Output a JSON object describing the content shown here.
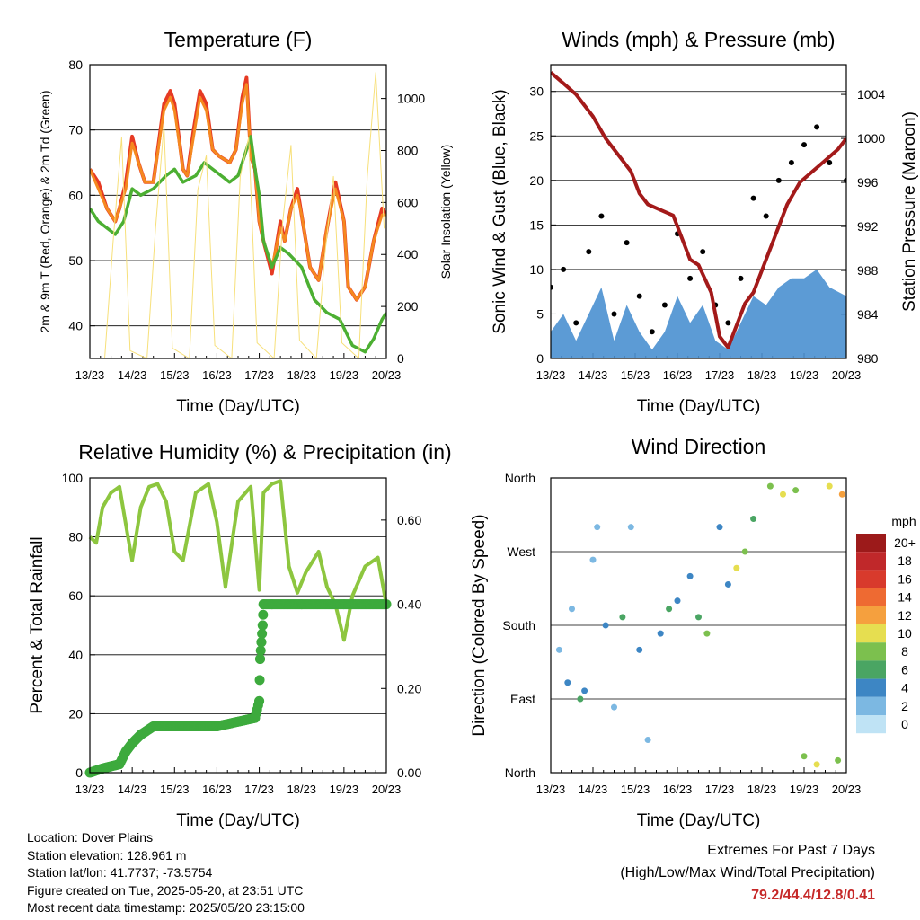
{
  "chart_data": [
    {
      "type": "line",
      "title": "Temperature (F)",
      "xlabel": "Time (Day/UTC)",
      "ylabel": "2m & 9m T (Red, Orange) & 2m Td (Green)",
      "ylabel_right": "Solar Insolation (Yellow)",
      "xticks": [
        "13/23",
        "14/23",
        "15/23",
        "16/23",
        "17/23",
        "18/23",
        "19/23",
        "20/23"
      ],
      "ylim": [
        35,
        80
      ],
      "yticks": [
        40,
        50,
        60,
        70,
        80
      ],
      "ylim_right": [
        0,
        1130
      ],
      "yticks_right": [
        0,
        200,
        400,
        600,
        800,
        1000
      ],
      "grid": true,
      "series": [
        {
          "name": "2m T",
          "color": "#e63a23",
          "x": [
            0,
            0.2,
            0.4,
            0.5,
            0.6,
            0.7,
            0.85,
            1,
            1.15,
            1.3,
            1.5,
            1.75,
            1.9,
            2,
            2.2,
            2.3,
            2.45,
            2.6,
            2.75,
            2.9,
            3.05,
            3.3,
            3.45,
            3.6,
            3.7,
            3.8,
            3.9,
            4,
            4.1,
            4.3,
            4.4,
            4.5,
            4.6,
            4.75,
            4.9,
            5.0,
            5.2,
            5.4,
            5.6,
            5.8,
            6.0,
            6.1,
            6.3,
            6.5,
            6.7,
            6.9,
            7.0
          ],
          "y": [
            64,
            62,
            58,
            57,
            56,
            58,
            62,
            69,
            65,
            62,
            62,
            74,
            76,
            74,
            64,
            63,
            70,
            76,
            74,
            67,
            66,
            65,
            67,
            75,
            78,
            66,
            64,
            56,
            53,
            48,
            52,
            56,
            53,
            58,
            61,
            57,
            49,
            47,
            55,
            62,
            56,
            46,
            44,
            46,
            53,
            58,
            57
          ]
        },
        {
          "name": "9m T",
          "color": "#f5891f",
          "x": [
            0,
            0.2,
            0.4,
            0.5,
            0.6,
            0.7,
            0.85,
            1,
            1.15,
            1.3,
            1.5,
            1.75,
            1.9,
            2,
            2.2,
            2.3,
            2.45,
            2.6,
            2.75,
            2.9,
            3.05,
            3.3,
            3.45,
            3.6,
            3.7,
            3.8,
            3.9,
            4,
            4.1,
            4.3,
            4.4,
            4.5,
            4.6,
            4.75,
            4.9,
            5.0,
            5.2,
            5.4,
            5.6,
            5.8,
            6.0,
            6.1,
            6.3,
            6.5,
            6.7,
            6.9,
            7.0
          ],
          "y": [
            64,
            61,
            58,
            57,
            56,
            58,
            61,
            68,
            65,
            62,
            62,
            73,
            75,
            73,
            64,
            63,
            69,
            75,
            73,
            67,
            66,
            65,
            67,
            74,
            77,
            66,
            64,
            56,
            53,
            49,
            52,
            55,
            53,
            58,
            60,
            57,
            49,
            47,
            55,
            61,
            56,
            46,
            44,
            46,
            53,
            57,
            57
          ]
        },
        {
          "name": "2m Td",
          "color": "#4caf32",
          "x": [
            0,
            0.2,
            0.4,
            0.6,
            0.8,
            1.0,
            1.2,
            1.5,
            1.8,
            2.0,
            2.2,
            2.5,
            2.7,
            2.9,
            3.1,
            3.3,
            3.5,
            3.7,
            3.8,
            3.9,
            4.0,
            4.1,
            4.3,
            4.5,
            4.7,
            5.0,
            5.3,
            5.6,
            5.9,
            6.2,
            6.5,
            6.7,
            6.9,
            7.0
          ],
          "y": [
            58,
            56,
            55,
            54,
            56,
            61,
            60,
            61,
            63,
            64,
            62,
            63,
            65,
            64,
            63,
            62,
            63,
            67,
            69,
            64,
            60,
            53,
            49,
            52,
            51,
            49,
            44,
            42,
            41,
            37,
            36,
            38,
            41,
            42
          ]
        },
        {
          "name": "Solar Insolation",
          "color": "#f7e07a",
          "axis": "right",
          "x": [
            0.35,
            0.55,
            0.75,
            0.95,
            1.35,
            1.55,
            1.75,
            1.95,
            2.35,
            2.55,
            2.75,
            2.95,
            3.35,
            3.55,
            3.75,
            3.95,
            4.35,
            4.55,
            4.75,
            4.95,
            5.35,
            5.55,
            5.75,
            5.95,
            6.35,
            6.55,
            6.75,
            6.95
          ],
          "y": [
            0,
            450,
            850,
            30,
            0,
            500,
            900,
            40,
            0,
            650,
            780,
            50,
            0,
            700,
            850,
            60,
            0,
            520,
            820,
            70,
            0,
            400,
            700,
            60,
            0,
            700,
            1100,
            500
          ]
        }
      ]
    },
    {
      "type": "line",
      "title": "Winds (mph) & Pressure (mb)",
      "xlabel": "Time (Day/UTC)",
      "ylabel": "Sonic Wind & Gust (Blue, Black)",
      "ylabel_right": "Station Pressure (Maroon)",
      "xticks": [
        "13/23",
        "14/23",
        "15/23",
        "16/23",
        "17/23",
        "18/23",
        "19/23",
        "20/23"
      ],
      "ylim": [
        0,
        33
      ],
      "yticks": [
        0,
        5,
        10,
        15,
        20,
        25,
        30
      ],
      "ylim_right": [
        980,
        1006.7
      ],
      "yticks_right": [
        980,
        984,
        988,
        992,
        996,
        1000,
        1004
      ],
      "grid": true,
      "series": [
        {
          "name": "Sonic Wind",
          "color": "#4a90d0",
          "x": [
            0,
            0.3,
            0.6,
            0.9,
            1.2,
            1.5,
            1.8,
            2.1,
            2.4,
            2.7,
            3.0,
            3.3,
            3.6,
            3.9,
            4.2,
            4.5,
            4.8,
            5.1,
            5.4,
            5.7,
            6.0,
            6.3,
            6.6,
            7.0
          ],
          "y": [
            3,
            5,
            2,
            5,
            8,
            2,
            6,
            3,
            1,
            3,
            7,
            4,
            6,
            2,
            1,
            4,
            7,
            6,
            8,
            9,
            9,
            10,
            8,
            7
          ]
        },
        {
          "name": "Gust",
          "color": "#000000",
          "x": [
            0,
            0.3,
            0.6,
            0.9,
            1.2,
            1.5,
            1.8,
            2.1,
            2.4,
            2.7,
            3.0,
            3.3,
            3.6,
            3.9,
            4.2,
            4.5,
            4.8,
            5.1,
            5.4,
            5.7,
            6.0,
            6.3,
            6.6,
            7.0
          ],
          "y": [
            8,
            10,
            4,
            12,
            16,
            5,
            13,
            7,
            3,
            6,
            14,
            9,
            12,
            6,
            4,
            9,
            18,
            16,
            20,
            22,
            24,
            26,
            22,
            20
          ]
        },
        {
          "name": "Station Pressure",
          "color": "#a31a1a",
          "axis": "right",
          "x": [
            0,
            0.3,
            0.6,
            1.0,
            1.3,
            1.6,
            1.9,
            2.1,
            2.3,
            2.6,
            2.9,
            3.1,
            3.3,
            3.5,
            3.8,
            4.0,
            4.2,
            4.4,
            4.6,
            4.8,
            5.0,
            5.3,
            5.6,
            5.9,
            6.2,
            6.5,
            6.8,
            7.0
          ],
          "y": [
            1006,
            1005,
            1004,
            1002,
            1000,
            998.5,
            997,
            995,
            994,
            993.5,
            993,
            991,
            989,
            988.5,
            986,
            982,
            981,
            983,
            985,
            986,
            988,
            991,
            994,
            996,
            997,
            998,
            999,
            1000
          ]
        }
      ]
    },
    {
      "type": "line",
      "title": "Relative Humidity (%) & Precipitation (in)",
      "xlabel": "Time (Day/UTC)",
      "ylabel": "Percent & Total Rainfall",
      "xticks": [
        "13/23",
        "14/23",
        "15/23",
        "16/23",
        "17/23",
        "18/23",
        "19/23",
        "20/23"
      ],
      "ylim": [
        0,
        100
      ],
      "yticks": [
        0,
        20,
        40,
        60,
        80,
        100
      ],
      "ylim_right": [
        0,
        0.7
      ],
      "yticks_right": [
        "0.00",
        "0.20",
        "0.40",
        "0.60"
      ],
      "grid": true,
      "series": [
        {
          "name": "Relative Humidity",
          "color": "#8dc63f",
          "x": [
            0,
            0.15,
            0.3,
            0.5,
            0.7,
            0.9,
            1.0,
            1.2,
            1.4,
            1.6,
            1.8,
            2.0,
            2.2,
            2.5,
            2.8,
            3.0,
            3.2,
            3.5,
            3.8,
            4.0,
            4.1,
            4.3,
            4.5,
            4.7,
            4.9,
            5.1,
            5.4,
            5.6,
            5.8,
            6.0,
            6.2,
            6.5,
            6.8,
            7.0
          ],
          "y": [
            80,
            78,
            90,
            95,
            97,
            80,
            72,
            90,
            97,
            98,
            92,
            75,
            72,
            95,
            98,
            85,
            63,
            92,
            97,
            62,
            95,
            98,
            99,
            70,
            61,
            68,
            75,
            63,
            57,
            45,
            60,
            70,
            73,
            57
          ]
        },
        {
          "name": "Total Rainfall",
          "color": "#3daa3d",
          "axis": "right",
          "x": [
            0,
            0.3,
            0.7,
            0.85,
            1.0,
            1.2,
            1.5,
            2.0,
            3.0,
            3.9,
            4.0,
            4.02,
            4.05,
            4.08,
            4.1,
            4.3,
            5.0,
            6.0,
            7.0
          ],
          "y": [
            0,
            0.01,
            0.02,
            0.05,
            0.07,
            0.09,
            0.11,
            0.11,
            0.11,
            0.13,
            0.17,
            0.27,
            0.31,
            0.35,
            0.4,
            0.4,
            0.4,
            0.4,
            0.4
          ]
        }
      ]
    },
    {
      "type": "scatter",
      "title": "Wind Direction",
      "xlabel": "Time (Day/UTC)",
      "ylabel": "Direction (Colored By Speed)",
      "xticks": [
        "13/23",
        "14/23",
        "15/23",
        "16/23",
        "17/23",
        "18/23",
        "19/23",
        "20/23"
      ],
      "yticks": [
        "North",
        "East",
        "South",
        "West",
        "North"
      ],
      "ylim": [
        0,
        360
      ],
      "grid": true,
      "legend_title": "mph",
      "legend_labels": [
        "20+",
        "18",
        "16",
        "14",
        "12",
        "10",
        "8",
        "6",
        "4",
        "2",
        "0"
      ],
      "legend_colors": [
        "#9c1a1a",
        "#c0282a",
        "#d83a2c",
        "#ee6a32",
        "#f5a03e",
        "#e6de50",
        "#7cc04e",
        "#4aa563",
        "#3d86c4",
        "#7cb8e2",
        "#bfe3f5"
      ],
      "points": [
        {
          "x": 0.2,
          "y": 150,
          "s": 2
        },
        {
          "x": 0.4,
          "y": 110,
          "s": 4
        },
        {
          "x": 0.5,
          "y": 200,
          "s": 2
        },
        {
          "x": 0.7,
          "y": 90,
          "s": 6
        },
        {
          "x": 0.8,
          "y": 100,
          "s": 4
        },
        {
          "x": 1.0,
          "y": 260,
          "s": 2
        },
        {
          "x": 1.1,
          "y": 300,
          "s": 1
        },
        {
          "x": 1.3,
          "y": 180,
          "s": 4
        },
        {
          "x": 1.5,
          "y": 80,
          "s": 2
        },
        {
          "x": 1.7,
          "y": 190,
          "s": 6
        },
        {
          "x": 1.9,
          "y": 300,
          "s": 2
        },
        {
          "x": 2.1,
          "y": 150,
          "s": 4
        },
        {
          "x": 2.3,
          "y": 40,
          "s": 2
        },
        {
          "x": 2.6,
          "y": 170,
          "s": 4
        },
        {
          "x": 2.8,
          "y": 200,
          "s": 6
        },
        {
          "x": 3.0,
          "y": 210,
          "s": 4
        },
        {
          "x": 3.3,
          "y": 240,
          "s": 4
        },
        {
          "x": 3.5,
          "y": 190,
          "s": 6
        },
        {
          "x": 3.7,
          "y": 170,
          "s": 8
        },
        {
          "x": 4.0,
          "y": 300,
          "s": 4
        },
        {
          "x": 4.2,
          "y": 230,
          "s": 4
        },
        {
          "x": 4.4,
          "y": 250,
          "s": 10
        },
        {
          "x": 4.6,
          "y": 270,
          "s": 8
        },
        {
          "x": 4.8,
          "y": 310,
          "s": 6
        },
        {
          "x": 5.2,
          "y": 350,
          "s": 8
        },
        {
          "x": 5.5,
          "y": 340,
          "s": 10
        },
        {
          "x": 5.8,
          "y": 345,
          "s": 8
        },
        {
          "x": 6.0,
          "y": 20,
          "s": 8
        },
        {
          "x": 6.3,
          "y": 10,
          "s": 10
        },
        {
          "x": 6.6,
          "y": 350,
          "s": 10
        },
        {
          "x": 6.8,
          "y": 15,
          "s": 8
        },
        {
          "x": 6.9,
          "y": 340,
          "s": 12
        }
      ]
    }
  ],
  "footer": {
    "location": "Location: Dover Plains",
    "elevation": "Station elevation: 128.961 m",
    "latlon": "Station lat/lon: 41.7737; -73.5754",
    "created": "Figure created on Tue, 2025-05-20, at 23:51 UTC",
    "recent": "Most recent data timestamp: 2025/05/20 23:15:00"
  },
  "extremes": {
    "title": "Extremes For Past 7 Days",
    "subtitle": "(High/Low/Max Wind/Total Precipitation)",
    "values": "79.2/44.4/12.8/0.41"
  }
}
